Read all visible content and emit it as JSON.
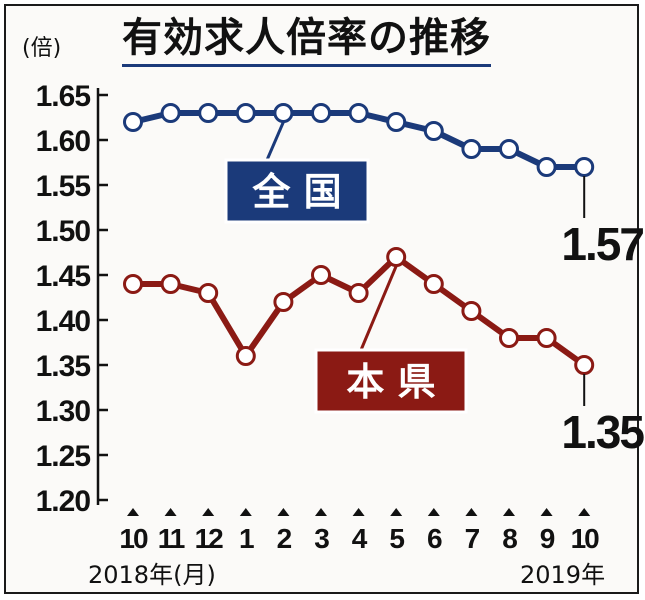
{
  "title": "有効求人倍率の推移",
  "chart_data": {
    "type": "line",
    "title": "有効求人倍率の推移",
    "ylabel": "(倍)",
    "xlabel_start": "2018年(月)",
    "xlabel_end": "2019年",
    "ylim": [
      1.2,
      1.65
    ],
    "yticks": [
      "1.65",
      "1.60",
      "1.55",
      "1.50",
      "1.45",
      "1.40",
      "1.35",
      "1.30",
      "1.25",
      "1.20"
    ],
    "categories": [
      "10",
      "11",
      "12",
      "1",
      "2",
      "3",
      "4",
      "5",
      "6",
      "7",
      "8",
      "9",
      "10"
    ],
    "series": [
      {
        "name": "全 国",
        "color": "#1b3a7a",
        "values": [
          1.62,
          1.63,
          1.63,
          1.63,
          1.63,
          1.63,
          1.63,
          1.62,
          1.61,
          1.59,
          1.59,
          1.57,
          1.57
        ],
        "end_label": "1.57"
      },
      {
        "name": "本 県",
        "color": "#8b1a14",
        "values": [
          1.44,
          1.44,
          1.43,
          1.36,
          1.42,
          1.45,
          1.43,
          1.47,
          1.44,
          1.41,
          1.38,
          1.38,
          1.35
        ],
        "end_label": "1.35"
      }
    ],
    "grid": false,
    "legend": "inline"
  }
}
